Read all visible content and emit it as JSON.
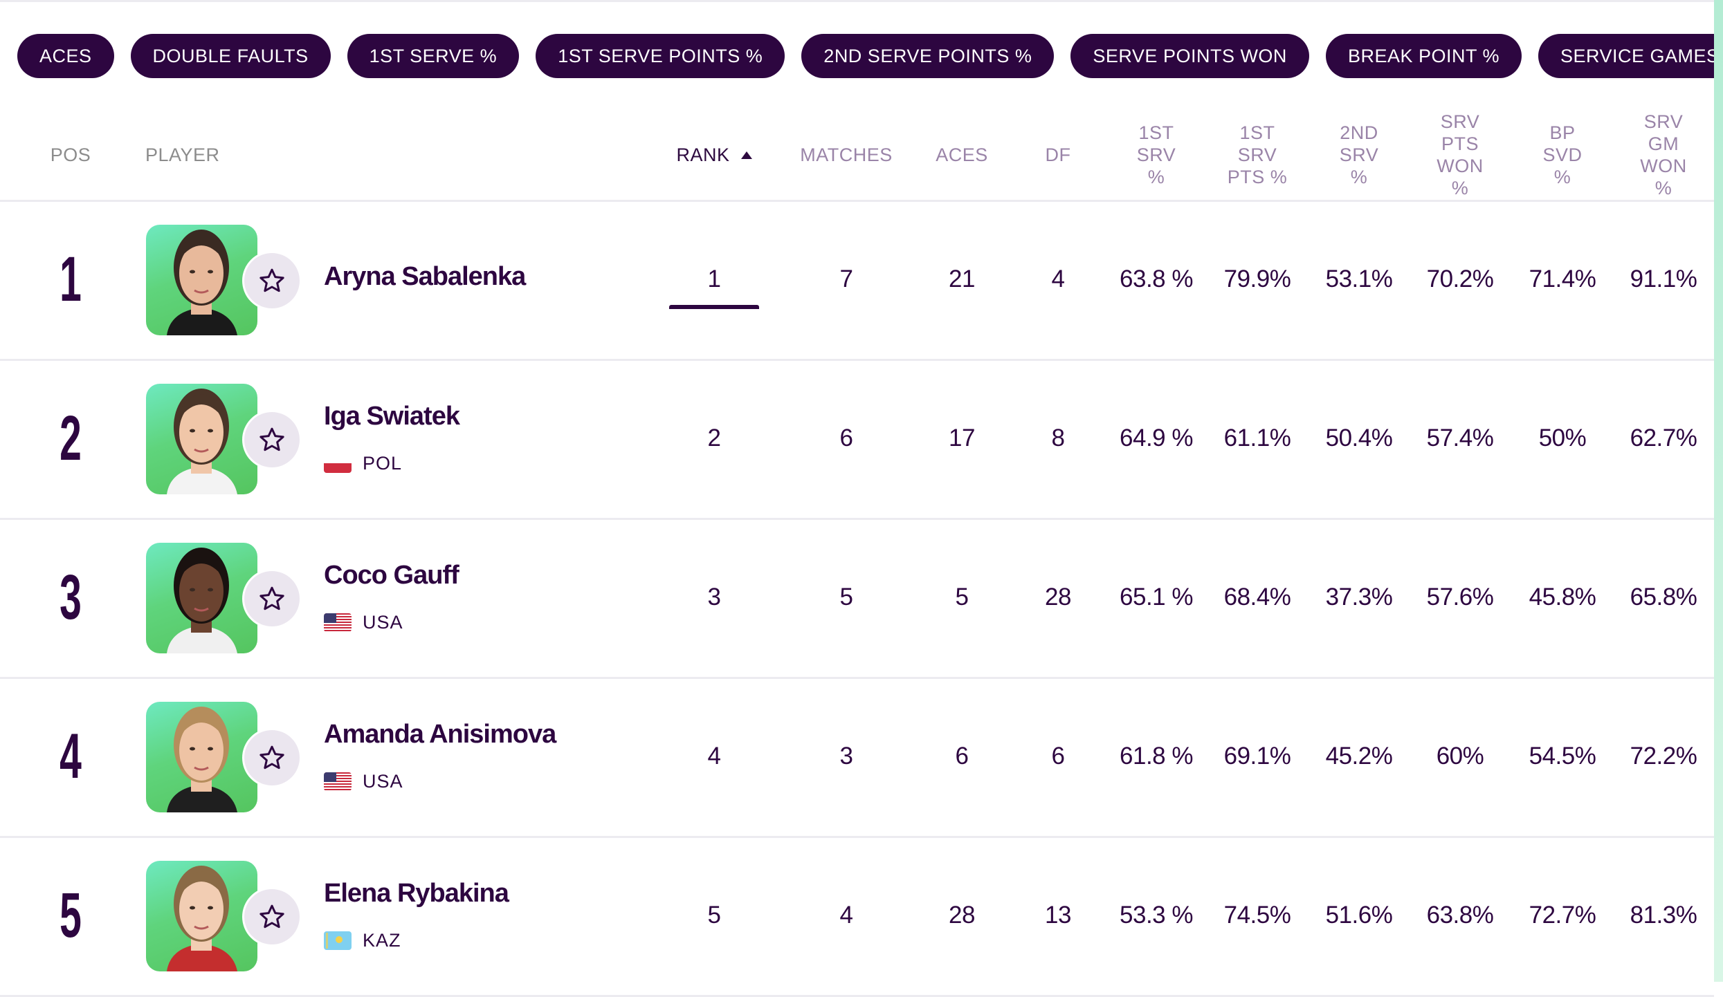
{
  "filter_pills": [
    "ACES",
    "DOUBLE FAULTS",
    "1ST SERVE %",
    "1ST SERVE POINTS %",
    "2ND SERVE POINTS %",
    "SERVE POINTS WON",
    "BREAK POINT %",
    "SERVICE GAMES WON %"
  ],
  "headers": {
    "pos": "POS",
    "player": "PLAYER",
    "rank": "RANK",
    "matches": "MATCHES",
    "aces": "ACES",
    "df": "DF",
    "first_srv": "1ST SRV %",
    "first_srv_pts": "1ST SRV PTS %",
    "second_srv": "2ND SRV %",
    "srv_pts_won": "SRV PTS WON %",
    "bp_svd": "BP SVD %",
    "srv_gm_won": "SRV GM WON %"
  },
  "sort": {
    "column": "rank",
    "direction": "ascending"
  },
  "colors": {
    "brand": "#2d0640",
    "header_text": "#9a84a8",
    "photo_bg": "#5fd47c",
    "divider": "#ecebf0"
  },
  "players": [
    {
      "pos": "1",
      "name": "Aryna Sabalenka",
      "country": "",
      "flag": "",
      "rank": "1",
      "matches": "7",
      "aces": "21",
      "df": "4",
      "first_srv": "63.8 %",
      "first_srv_pts": "79.9%",
      "second_srv": "53.1%",
      "srv_pts_won": "70.2%",
      "bp_svd": "71.4%",
      "srv_gm_won": "91.1%"
    },
    {
      "pos": "2",
      "name": "Iga Swiatek",
      "country": "POL",
      "flag": "poland-flag",
      "rank": "2",
      "matches": "6",
      "aces": "17",
      "df": "8",
      "first_srv": "64.9 %",
      "first_srv_pts": "61.1%",
      "second_srv": "50.4%",
      "srv_pts_won": "57.4%",
      "bp_svd": "50%",
      "srv_gm_won": "62.7%"
    },
    {
      "pos": "3",
      "name": "Coco Gauff",
      "country": "USA",
      "flag": "usa-flag",
      "rank": "3",
      "matches": "5",
      "aces": "5",
      "df": "28",
      "first_srv": "65.1 %",
      "first_srv_pts": "68.4%",
      "second_srv": "37.3%",
      "srv_pts_won": "57.6%",
      "bp_svd": "45.8%",
      "srv_gm_won": "65.8%"
    },
    {
      "pos": "4",
      "name": "Amanda Anisimova",
      "country": "USA",
      "flag": "usa-flag",
      "rank": "4",
      "matches": "3",
      "aces": "6",
      "df": "6",
      "first_srv": "61.8 %",
      "first_srv_pts": "69.1%",
      "second_srv": "45.2%",
      "srv_pts_won": "60%",
      "bp_svd": "54.5%",
      "srv_gm_won": "72.2%"
    },
    {
      "pos": "5",
      "name": "Elena Rybakina",
      "country": "KAZ",
      "flag": "kazakhstan-flag",
      "rank": "5",
      "matches": "4",
      "aces": "28",
      "df": "13",
      "first_srv": "53.3 %",
      "first_srv_pts": "74.5%",
      "second_srv": "51.6%",
      "srv_pts_won": "63.8%",
      "bp_svd": "72.7%",
      "srv_gm_won": "81.3%"
    }
  ]
}
